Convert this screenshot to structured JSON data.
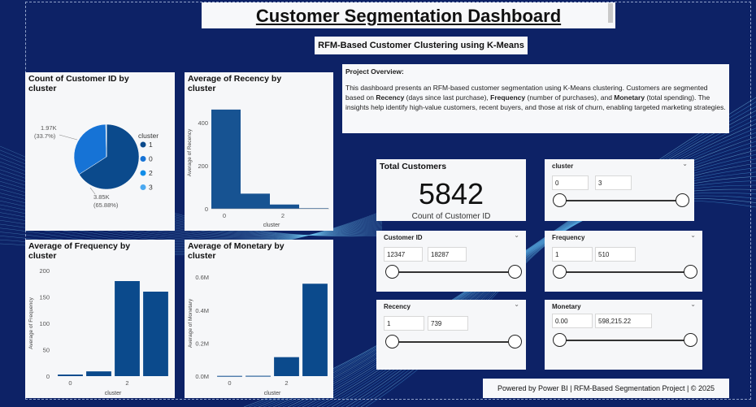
{
  "header": {
    "title": "Customer Segmentation Dashboard",
    "subtitle": "RFM-Based Customer Clustering using K-Means"
  },
  "overview": {
    "heading": "Project Overview:",
    "text_1": "This dashboard presents an RFM-based customer segmentation using K-Means clustering. Customers are segmented based on ",
    "recency": "Recency",
    "text_2": " (days since last purchase), ",
    "frequency": "Frequency",
    "text_3": " (number of purchases), and ",
    "monetary": "Monetary",
    "text_4": " (total spending). The insights help identify high-value customers, recent buyers, and those at risk of churn, enabling targeted marketing strategies."
  },
  "kpi": {
    "title": "Total Customers",
    "value": "5842",
    "label": "Count of Customer ID"
  },
  "slicers": {
    "cluster": {
      "title": "cluster",
      "min": "0",
      "max": "3"
    },
    "customer_id": {
      "title": "Customer ID",
      "min": "12347",
      "max": "18287"
    },
    "frequency": {
      "title": "Frequency",
      "min": "1",
      "max": "510"
    },
    "recency": {
      "title": "Recency",
      "min": "1",
      "max": "739"
    },
    "monetary": {
      "title": "Monetary",
      "min": "0.00",
      "max": "598,215.22"
    }
  },
  "footer": "Powered by Power BI | RFM-Based Segmentation Project | © 2025",
  "colors": {
    "background": "#0d2266",
    "bar": "#0b4a8c",
    "pie_1": "#0b4a8c",
    "pie_0": "#1673d6",
    "pie_2": "#118de8",
    "pie_3": "#4aa8f0"
  },
  "chart_data": [
    {
      "type": "pie",
      "title": "Count of Customer ID by cluster",
      "legend_title": "cluster",
      "categories": [
        "1",
        "0",
        "2",
        "3"
      ],
      "values": [
        3850,
        1970,
        20,
        2
      ],
      "labels": [
        {
          "value": "3.85K",
          "pct": "(65.88%)"
        },
        {
          "value": "1.97K",
          "pct": "(33.7%)"
        }
      ],
      "legend": "right"
    },
    {
      "type": "area",
      "title": "Average of Recency by cluster",
      "x": [
        0,
        1,
        2,
        3
      ],
      "values": [
        460,
        70,
        20,
        3
      ],
      "xlabel": "cluster",
      "ylabel": "Average of Recency",
      "ylim": [
        0,
        520
      ],
      "yticks": [
        0,
        200,
        400
      ],
      "xticks": [
        0,
        2
      ]
    },
    {
      "type": "bar",
      "title": "Average of Frequency by cluster",
      "categories": [
        "0",
        "1",
        "2",
        "3"
      ],
      "values": [
        3,
        9,
        180,
        160
      ],
      "xlabel": "cluster",
      "ylabel": "Average of Frequency",
      "ylim": [
        0,
        200
      ],
      "yticks": [
        0,
        50,
        100,
        150,
        200
      ],
      "xtick_labels": [
        "0",
        "",
        "2",
        ""
      ]
    },
    {
      "type": "bar",
      "title": "Average of Monetary by cluster",
      "categories": [
        "0",
        "1",
        "2",
        "3"
      ],
      "values": [
        1500,
        2000,
        115000,
        560000
      ],
      "xlabel": "cluster",
      "ylabel": "Average of Monetary",
      "ylim": [
        0,
        640000
      ],
      "yticks": [
        0,
        200000,
        400000,
        600000
      ],
      "ytick_labels": [
        "0.0M",
        "0.2M",
        "0.4M",
        "0.6M"
      ],
      "xtick_labels": [
        "0",
        "",
        "2",
        ""
      ]
    }
  ]
}
